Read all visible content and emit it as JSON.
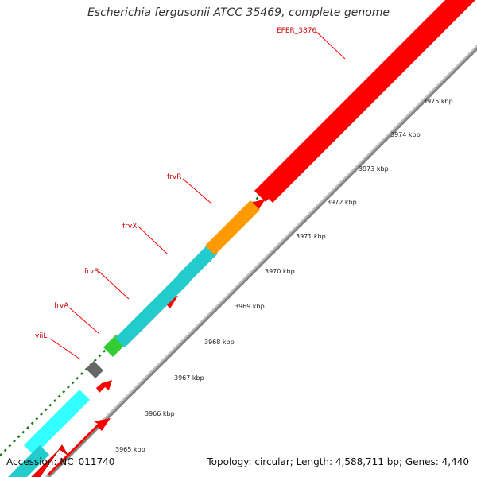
{
  "title": "Escherichia fergusonii ATCC 35469, complete genome",
  "footer": {
    "accession": "Accession: NC_011740",
    "summary": "Topology: circular; Length: 4,588,711 bp; Genes: 4,440"
  },
  "ticks": [
    "3965 kbp",
    "3966 kbp",
    "3967 kbp",
    "3968 kbp",
    "3969 kbp",
    "3970 kbp",
    "3971 kbp",
    "3972 kbp",
    "3973 kbp",
    "3974 kbp",
    "3975 kbp"
  ],
  "genes": [
    {
      "name": "yiiL",
      "color": "#666666"
    },
    {
      "name": "frvA",
      "color": "#33cc33"
    },
    {
      "name": "frvB",
      "color": "#22cccc"
    },
    {
      "name": "frvX",
      "color": "#22cccc"
    },
    {
      "name": "frvR",
      "color": "#ff9900"
    },
    {
      "name": "EFER_3876",
      "color": "#ff0000"
    }
  ],
  "colors": {
    "forward_cds": "#ff0000",
    "backbone": "#888888",
    "tick_marks": "#1a7a1a"
  }
}
